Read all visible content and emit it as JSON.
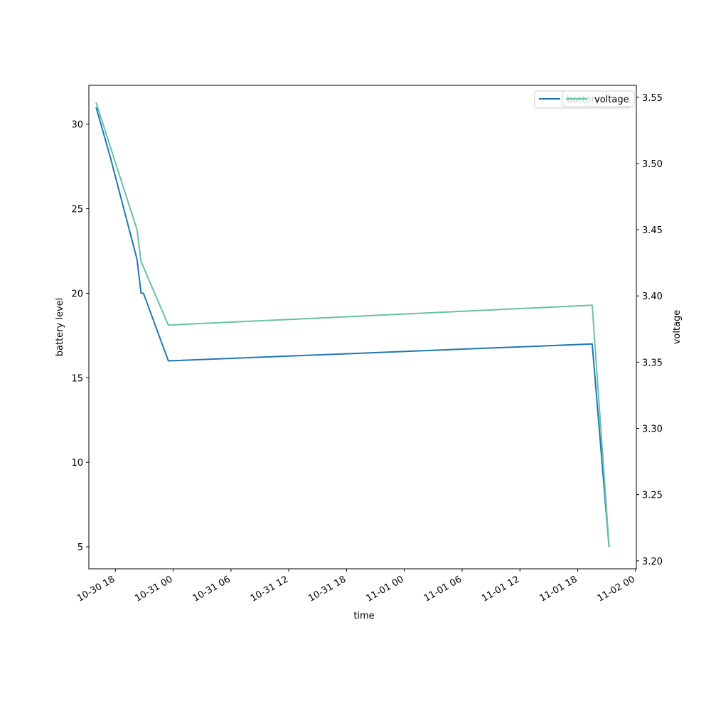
{
  "chart_data": {
    "type": "line",
    "title": "",
    "xlabel": "time",
    "ylabel": "battery level",
    "y2label": "voltage",
    "x_range": [
      "2025-10-30 15:15",
      "2025-11-02 00:05"
    ],
    "ylim": [
      3.7,
      32.3
    ],
    "y2lim": [
      3.194,
      3.559
    ],
    "x_tick_labels": [
      "10-30 18",
      "10-31 00",
      "10-31 06",
      "10-31 12",
      "10-31 18",
      "11-01 00",
      "11-01 06",
      "11-01 12",
      "11-01 18",
      "11-02 00"
    ],
    "y_ticks": [
      "5",
      "10",
      "15",
      "20",
      "25",
      "30"
    ],
    "y2_ticks": [
      "3.20",
      "3.25",
      "3.30",
      "3.35",
      "3.40",
      "3.45",
      "3.50",
      "3.55"
    ],
    "grid": false,
    "legend_position": "top-right",
    "series": [
      {
        "name": "battery",
        "axis": "left",
        "color": "#1f77b4",
        "points": [
          [
            "2025-10-30 16:00",
            31
          ],
          [
            "2025-10-30 17:30",
            28
          ],
          [
            "2025-10-30 20:15",
            22
          ],
          [
            "2025-10-30 20:40",
            20
          ],
          [
            "2025-10-30 20:55",
            20
          ],
          [
            "2025-10-30 23:30",
            16
          ],
          [
            "2025-11-01 19:30",
            17
          ],
          [
            "2025-11-01 21:15",
            5
          ]
        ]
      },
      {
        "name": "voltage",
        "axis": "right",
        "color": "#66c2a5",
        "points": [
          [
            "2025-10-30 16:00",
            3.546
          ],
          [
            "2025-10-30 20:15",
            3.45
          ],
          [
            "2025-10-30 20:40",
            3.426
          ],
          [
            "2025-10-30 23:30",
            3.378
          ],
          [
            "2025-11-01 19:30",
            3.393
          ],
          [
            "2025-11-01 21:15",
            3.211
          ]
        ]
      }
    ]
  }
}
